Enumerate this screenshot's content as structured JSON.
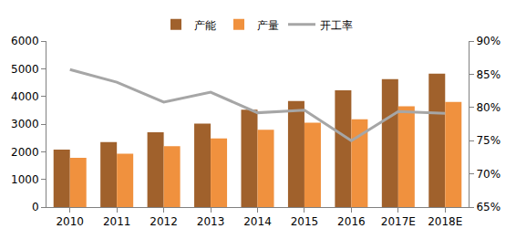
{
  "chart_data": {
    "type": "bar",
    "categories": [
      "2010",
      "2011",
      "2012",
      "2013",
      "2014",
      "2015",
      "2016",
      "2017E",
      "2018E"
    ],
    "series": [
      {
        "name": "产能",
        "type": "bar",
        "color": "#a0612c",
        "values": [
          2080,
          2350,
          2700,
          3020,
          3520,
          3830,
          4220,
          4620,
          4820
        ]
      },
      {
        "name": "产量",
        "type": "bar",
        "color": "#f0913e",
        "values": [
          1780,
          1930,
          2200,
          2480,
          2790,
          3050,
          3170,
          3640,
          3800
        ]
      },
      {
        "name": "开工率",
        "type": "line",
        "color": "#a6a6a6",
        "axis": "y2",
        "values": [
          85.7,
          83.8,
          80.8,
          82.3,
          79.2,
          79.6,
          75.0,
          79.4,
          79.1
        ]
      }
    ],
    "ylim": [
      0,
      6000
    ],
    "yticks": [
      0,
      1000,
      2000,
      3000,
      4000,
      5000,
      6000
    ],
    "y2lim": [
      65,
      90
    ],
    "y2ticks": [
      {
        "value": 65,
        "label": "65%"
      },
      {
        "value": 70,
        "label": "70%"
      },
      {
        "value": 75,
        "label": "75%"
      },
      {
        "value": 80,
        "label": "80%"
      },
      {
        "value": 85,
        "label": "85%"
      },
      {
        "value": 90,
        "label": "90%"
      }
    ],
    "grid": false,
    "legend": "top"
  }
}
